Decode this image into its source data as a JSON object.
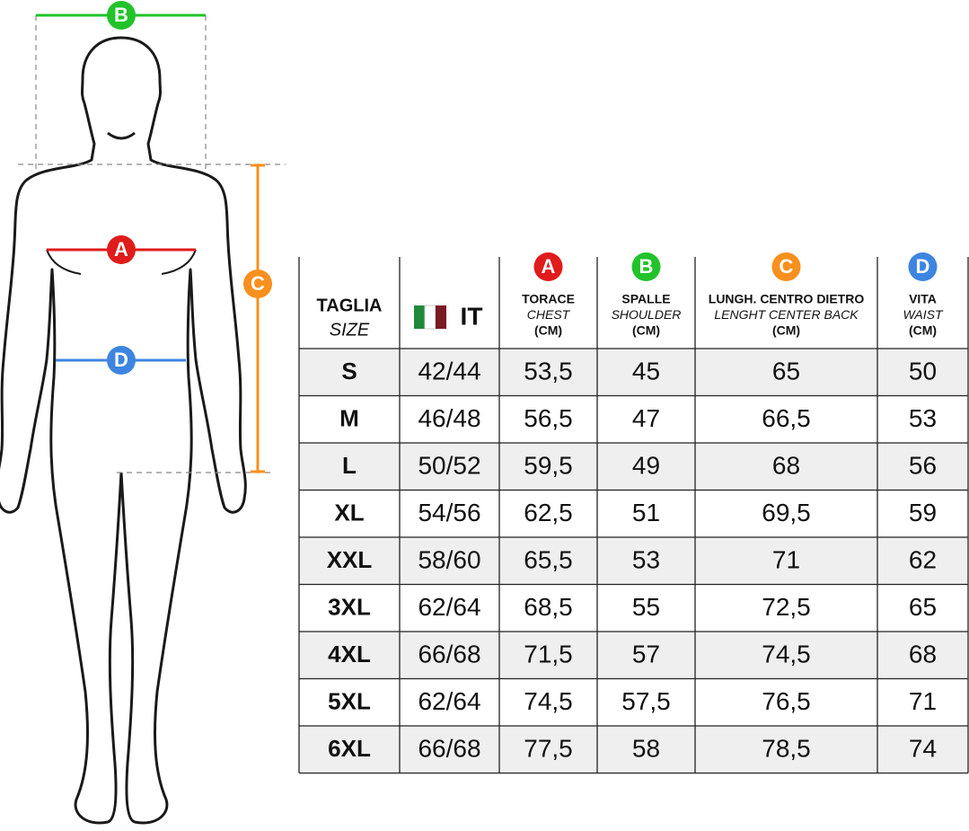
{
  "figure": {
    "markers": [
      "B",
      "A",
      "D",
      "C"
    ]
  },
  "table": {
    "columns": [
      {
        "lines": [
          "TAGLIA",
          "SIZE"
        ]
      },
      {
        "label": "IT"
      },
      {
        "marker": "A",
        "lines": [
          "TORACE",
          "CHEST",
          "(CM)"
        ]
      },
      {
        "marker": "B",
        "lines": [
          "SPALLE",
          "SHOULDER",
          "(CM)"
        ]
      },
      {
        "marker": "C",
        "lines": [
          "LUNGH. CENTRO DIETRO",
          "LENGHT CENTER BACK",
          "(CM)"
        ]
      },
      {
        "marker": "D",
        "lines": [
          "VITA",
          "WAIST",
          "(CM)"
        ]
      }
    ],
    "rows": [
      [
        "S",
        "42/44",
        "53,5",
        "45",
        "65",
        "50"
      ],
      [
        "M",
        "46/48",
        "56,5",
        "47",
        "66,5",
        "53"
      ],
      [
        "L",
        "50/52",
        "59,5",
        "49",
        "68",
        "56"
      ],
      [
        "XL",
        "54/56",
        "62,5",
        "51",
        "69,5",
        "59"
      ],
      [
        "XXL",
        "58/60",
        "65,5",
        "53",
        "71",
        "62"
      ],
      [
        "3XL",
        "62/64",
        "68,5",
        "55",
        "72,5",
        "65"
      ],
      [
        "4XL",
        "66/68",
        "71,5",
        "57",
        "74,5",
        "68"
      ],
      [
        "5XL",
        "62/64",
        "74,5",
        "57,5",
        "76,5",
        "71"
      ],
      [
        "6XL",
        "66/68",
        "77,5",
        "58",
        "78,5",
        "74"
      ]
    ]
  }
}
